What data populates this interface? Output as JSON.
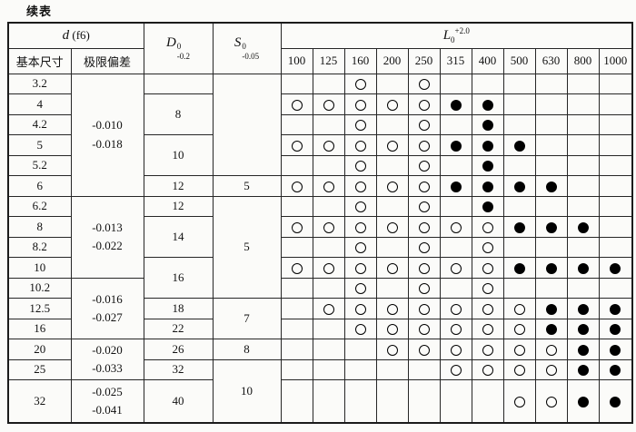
{
  "page": {
    "continued_label": "续表"
  },
  "colors": {
    "ink": "#111111",
    "paper": "#fbfbf9",
    "line": "#262626"
  },
  "table": {
    "header": {
      "d_group": {
        "symbol": "d",
        "suffix": "(f6)"
      },
      "D": {
        "base": "D",
        "sup": "0",
        "sub": "-0.2"
      },
      "S": {
        "base": "S",
        "sup": "0",
        "sub": "-0.05"
      },
      "L": {
        "base": "L",
        "sub": "0",
        "sup": "+2.0"
      },
      "sub_basic": "基本尺寸",
      "sub_dev": "极限偏差",
      "l_sizes": [
        "100",
        "125",
        "160",
        "200",
        "250",
        "315",
        "400",
        "500",
        "630",
        "800",
        "1000"
      ]
    },
    "mark_legend": {
      "o": "open-circle",
      "f": "filled-circle"
    },
    "rows": [
      {
        "size": "3.2",
        "dev": [
          "-0.010",
          "-0.018"
        ],
        "dev_span": 6,
        "d": "",
        "d_span": 1,
        "s": "",
        "s_span": 5,
        "marks": [
          "",
          "",
          "o",
          "",
          "o",
          "",
          "",
          "",
          "",
          "",
          ""
        ]
      },
      {
        "size": "4",
        "d": "8",
        "d_span": 2,
        "marks": [
          "o",
          "o",
          "o",
          "o",
          "o",
          "f",
          "f",
          "",
          "",
          "",
          ""
        ]
      },
      {
        "size": "4.2",
        "marks": [
          "",
          "",
          "o",
          "",
          "o",
          "",
          "f",
          "",
          "",
          "",
          ""
        ]
      },
      {
        "size": "5",
        "d": "10",
        "d_span": 2,
        "marks": [
          "o",
          "o",
          "o",
          "o",
          "o",
          "f",
          "f",
          "f",
          "",
          "",
          ""
        ]
      },
      {
        "size": "5.2",
        "marks": [
          "",
          "",
          "o",
          "",
          "o",
          "",
          "f",
          "",
          "",
          "",
          ""
        ]
      },
      {
        "size": "6",
        "d": "12",
        "d_span": 1,
        "s": "5",
        "s_span": 1,
        "marks": [
          "o",
          "o",
          "o",
          "o",
          "o",
          "f",
          "f",
          "f",
          "f",
          "",
          ""
        ]
      },
      {
        "size": "6.2",
        "dev": [
          "-0.013",
          "-0.022"
        ],
        "dev_span": 4,
        "d": "12",
        "d_span": 1,
        "s": "5",
        "s_span": 5,
        "marks": [
          "",
          "",
          "o",
          "",
          "o",
          "",
          "f",
          "",
          "",
          "",
          ""
        ]
      },
      {
        "size": "8",
        "d": "14",
        "d_span": 2,
        "marks": [
          "o",
          "o",
          "o",
          "o",
          "o",
          "o",
          "o",
          "f",
          "f",
          "f",
          ""
        ]
      },
      {
        "size": "8.2",
        "marks": [
          "",
          "",
          "o",
          "",
          "o",
          "",
          "o",
          "",
          "",
          "",
          ""
        ]
      },
      {
        "size": "10",
        "d": "16",
        "d_span": 2,
        "marks": [
          "o",
          "o",
          "o",
          "o",
          "o",
          "o",
          "o",
          "f",
          "f",
          "f",
          "f"
        ]
      },
      {
        "size": "10.2",
        "dev": [
          "-0.016",
          "-0.027"
        ],
        "dev_span": 3,
        "marks": [
          "",
          "",
          "o",
          "",
          "o",
          "",
          "o",
          "",
          "",
          "",
          ""
        ]
      },
      {
        "size": "12.5",
        "d": "18",
        "d_span": 1,
        "s": "7",
        "s_span": 2,
        "marks": [
          "",
          "o",
          "o",
          "o",
          "o",
          "o",
          "o",
          "o",
          "f",
          "f",
          "f"
        ]
      },
      {
        "size": "16",
        "d": "22",
        "d_span": 1,
        "marks": [
          "",
          "",
          "o",
          "o",
          "o",
          "o",
          "o",
          "o",
          "f",
          "f",
          "f"
        ]
      },
      {
        "size": "20",
        "dev": [
          "-0.020",
          "-0.033"
        ],
        "dev_span": 2,
        "d": "26",
        "d_span": 1,
        "s": "8",
        "s_span": 1,
        "marks": [
          "",
          "",
          "",
          "o",
          "o",
          "o",
          "o",
          "o",
          "o",
          "f",
          "f"
        ]
      },
      {
        "size": "25",
        "d": "32",
        "d_span": 1,
        "s": "10",
        "s_span": 2,
        "marks": [
          "",
          "",
          "",
          "",
          "",
          "o",
          "o",
          "o",
          "o",
          "f",
          "f"
        ]
      },
      {
        "size": "32",
        "dev": [
          "-0.025",
          "-0.041"
        ],
        "dev_span": 1,
        "d": "40",
        "d_span": 1,
        "tall": true,
        "marks": [
          "",
          "",
          "",
          "",
          "",
          "",
          "",
          "o",
          "o",
          "f",
          "f"
        ]
      }
    ]
  }
}
